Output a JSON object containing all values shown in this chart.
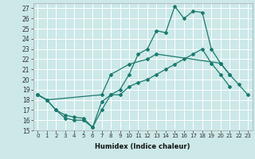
{
  "title": "",
  "xlabel": "Humidex (Indice chaleur)",
  "background_color": "#cce8e8",
  "grid_color": "#ffffff",
  "line_color": "#1a7a6e",
  "xlim": [
    -0.5,
    23.5
  ],
  "ylim": [
    15,
    27.5
  ],
  "yticks": [
    15,
    16,
    17,
    18,
    19,
    20,
    21,
    22,
    23,
    24,
    25,
    26,
    27
  ],
  "xticks": [
    0,
    1,
    2,
    3,
    4,
    5,
    6,
    7,
    8,
    9,
    10,
    11,
    12,
    13,
    14,
    15,
    16,
    17,
    18,
    19,
    20,
    21,
    22,
    23
  ],
  "series": [
    [
      18.5,
      18.0,
      17.0,
      16.2,
      16.0,
      16.0,
      15.3,
      17.8,
      18.5,
      19.0,
      20.5,
      22.5,
      23.0,
      24.8,
      24.6,
      27.2,
      26.0,
      26.7,
      26.6,
      23.0,
      21.6,
      20.5,
      19.5,
      18.5
    ],
    [
      18.5,
      18.0,
      null,
      null,
      null,
      null,
      null,
      18.5,
      20.5,
      null,
      21.5,
      null,
      22.0,
      22.5,
      null,
      null,
      null,
      null,
      null,
      null,
      21.6,
      20.5,
      null,
      null
    ],
    [
      18.5,
      18.0,
      17.0,
      16.5,
      16.3,
      16.2,
      15.3,
      17.0,
      18.5,
      18.5,
      19.3,
      19.7,
      20.0,
      20.5,
      21.0,
      21.5,
      22.0,
      22.5,
      23.0,
      21.6,
      20.5,
      19.3,
      null,
      null
    ]
  ]
}
